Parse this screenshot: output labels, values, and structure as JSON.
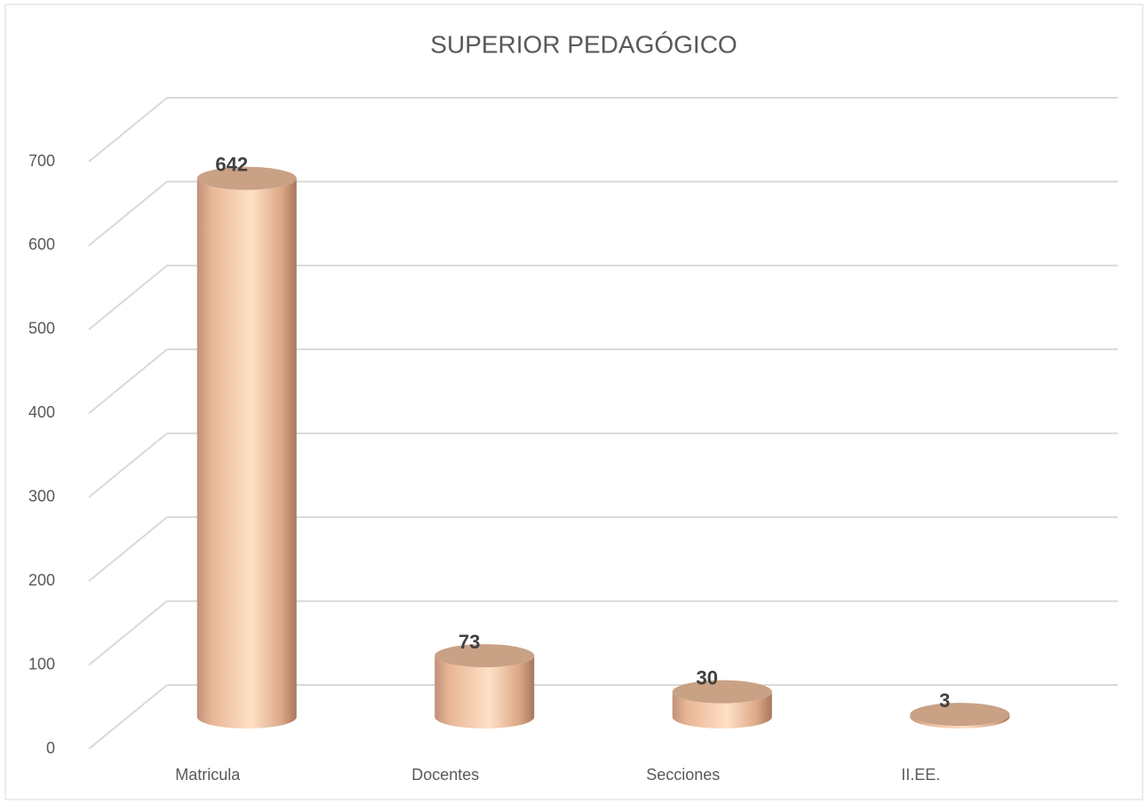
{
  "chart_data": {
    "type": "bar",
    "title": "SUPERIOR PEDAGÓGICO",
    "categories": [
      "Matricula",
      "Docentes",
      "Secciones",
      "II.EE."
    ],
    "values": [
      642,
      73,
      30,
      3
    ],
    "color": "#f5c9a5",
    "ylim": [
      0,
      700
    ],
    "yticks": [
      0,
      100,
      200,
      300,
      400,
      500,
      600,
      700
    ],
    "grid": true
  }
}
